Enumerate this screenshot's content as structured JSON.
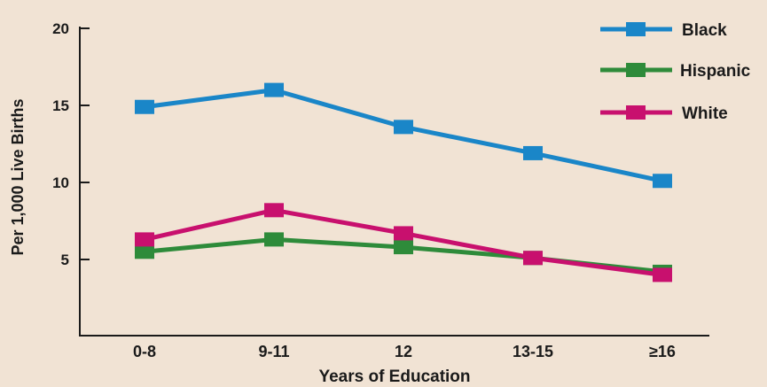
{
  "chart_data": {
    "type": "line",
    "title": "",
    "xlabel": "Years of Education",
    "ylabel": "Per 1,000 Live Births",
    "categories": [
      "0-8",
      "9-11",
      "12",
      "13-15",
      "≥16"
    ],
    "y_ticks": [
      "5",
      "10",
      "15",
      "20"
    ],
    "ylim": [
      0,
      20
    ],
    "grid": false,
    "legend_position": "top-right",
    "series": [
      {
        "name": "Black",
        "color": "#1a86c8",
        "values": [
          14.9,
          16.0,
          13.6,
          11.9,
          10.1
        ]
      },
      {
        "name": "Hispanic",
        "color": "#2e8b3a",
        "values": [
          5.5,
          6.3,
          5.8,
          5.1,
          4.2
        ]
      },
      {
        "name": "White",
        "color": "#c8106e",
        "values": [
          6.3,
          8.2,
          6.7,
          5.1,
          4.0
        ]
      }
    ]
  }
}
